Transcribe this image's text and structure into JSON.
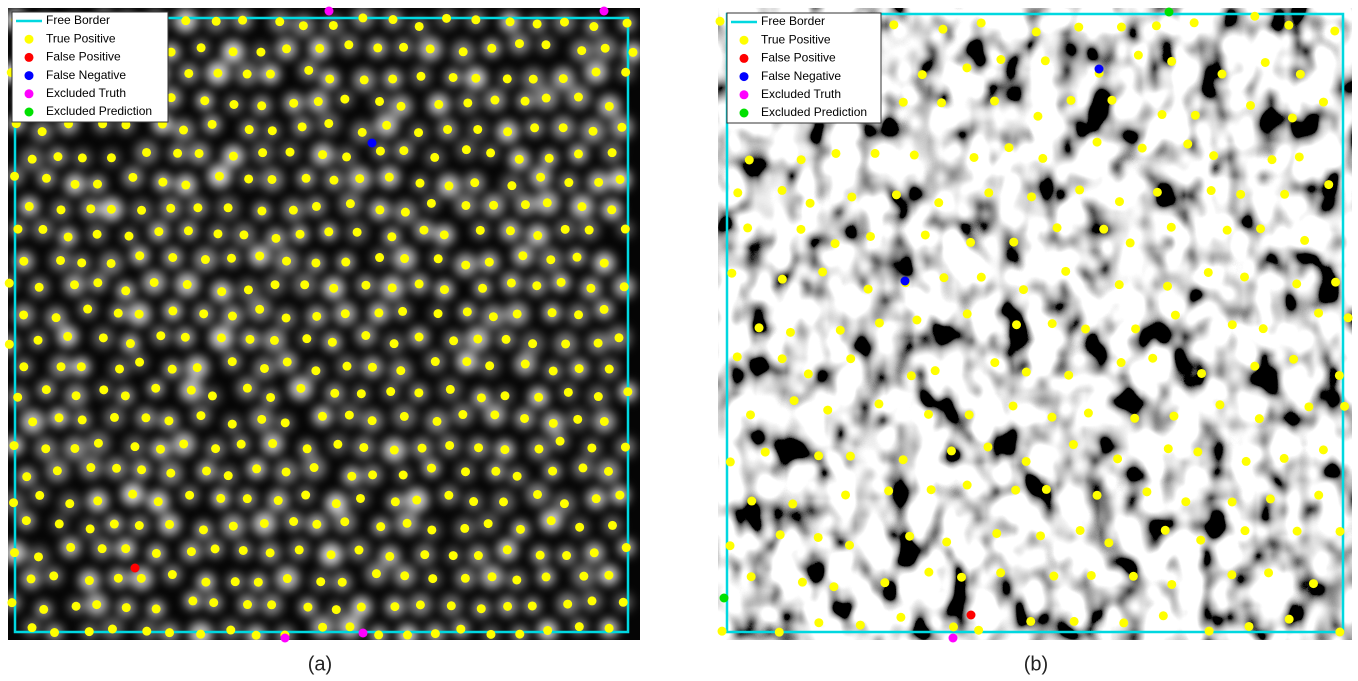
{
  "panels": [
    {
      "label": "(a)",
      "legend": [
        {
          "name": "Free Border",
          "color": "#00d8e0"
        },
        {
          "name": "True Positive",
          "color": "#ffff00"
        },
        {
          "name": "False Positive",
          "color": "#ff0000"
        },
        {
          "name": "False Negative",
          "color": "#0000ff"
        },
        {
          "name": "Excluded Truth",
          "color": "#ff00ff"
        },
        {
          "name": "Excluded Prediction",
          "color": "#00e000"
        }
      ]
    },
    {
      "label": "(b)",
      "legend": [
        {
          "name": "Free Border",
          "color": "#00d8e0"
        },
        {
          "name": "True Positive",
          "color": "#ffff00"
        },
        {
          "name": "False Positive",
          "color": "#ff0000"
        },
        {
          "name": "False Negative",
          "color": "#0000ff"
        },
        {
          "name": "Excluded Truth",
          "color": "#ff00ff"
        },
        {
          "name": "Excluded Prediction",
          "color": "#00e000"
        }
      ]
    }
  ]
}
